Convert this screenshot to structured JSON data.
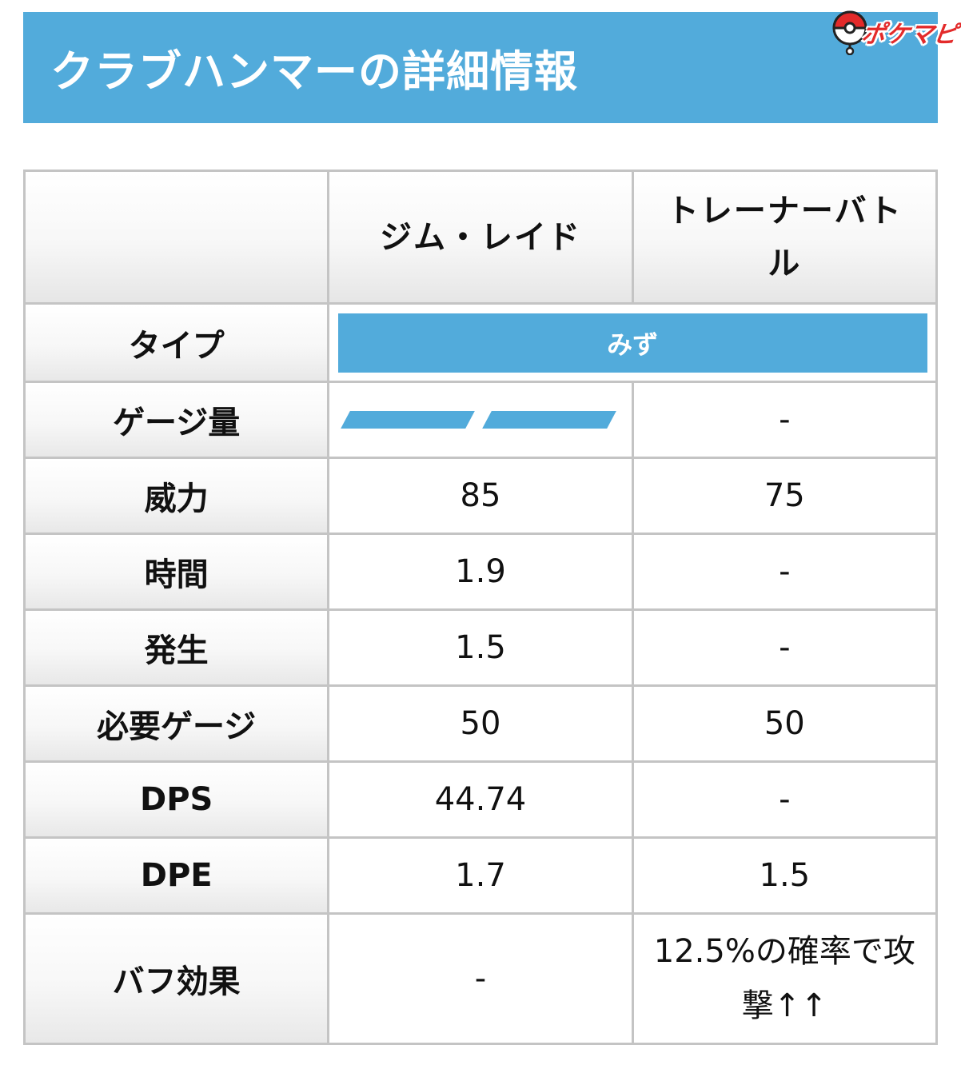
{
  "header": {
    "title": "クラブハンマーの詳細情報",
    "logo_text": "ポケマピ"
  },
  "colors": {
    "accent": "#52abdb",
    "logo_red": "#e32a2a",
    "border": "#c4c4c4"
  },
  "table": {
    "columns": [
      "",
      "ジム・レイド",
      "トレーナーバトル"
    ],
    "type_label": "タイプ",
    "type_value": "みず",
    "gauge": {
      "label": "ゲージ量",
      "segments": 2,
      "trainer_value": "-"
    },
    "rows": [
      {
        "label": "威力",
        "gym": "85",
        "trainer": "75"
      },
      {
        "label": "時間",
        "gym": "1.9",
        "trainer": "-"
      },
      {
        "label": "発生",
        "gym": "1.5",
        "trainer": "-"
      },
      {
        "label": "必要ゲージ",
        "gym": "50",
        "trainer": "50"
      },
      {
        "label": "DPS",
        "gym": "44.74",
        "trainer": "-"
      },
      {
        "label": "DPE",
        "gym": "1.7",
        "trainer": "1.5"
      },
      {
        "label": "バフ効果",
        "gym": "-",
        "trainer": "12.5%の確率で攻撃↑↑"
      }
    ]
  }
}
